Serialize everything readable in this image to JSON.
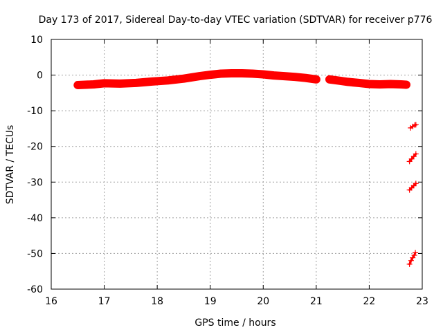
{
  "chart_data": {
    "type": "scatter",
    "title": "Day 173 of 2017, Sidereal Day-to-day VTEC variation (SDTVAR) for receiver p776",
    "xlabel": "GPS time / hours",
    "ylabel": "SDTVAR / TECUs",
    "xlim": [
      16,
      23
    ],
    "ylim": [
      -60,
      10
    ],
    "xticks": [
      16,
      17,
      18,
      19,
      20,
      21,
      22,
      23
    ],
    "yticks": [
      10,
      0,
      -10,
      -20,
      -30,
      -40,
      -50,
      -60
    ],
    "grid": true,
    "marker": "+",
    "color": "#ff0000",
    "series": [
      {
        "values_x": [
          16.5,
          16.8,
          17.0,
          17.3,
          17.6,
          17.9,
          18.2,
          18.5,
          18.8,
          19.0,
          19.2,
          19.4,
          19.6,
          19.8,
          20.0,
          20.2,
          20.4,
          20.6,
          20.8,
          21.0
        ],
        "values_y": [
          -2.8,
          -2.6,
          -2.3,
          -2.4,
          -2.2,
          -1.8,
          -1.5,
          -1.0,
          -0.3,
          0.1,
          0.4,
          0.5,
          0.5,
          0.4,
          0.2,
          -0.1,
          -0.3,
          -0.5,
          -0.8,
          -1.2
        ]
      },
      {
        "values_x": [
          21.25,
          21.4,
          21.6,
          21.8,
          22.0,
          22.2,
          22.4,
          22.6,
          22.7
        ],
        "values_y": [
          -1.2,
          -1.5,
          -1.9,
          -2.2,
          -2.5,
          -2.6,
          -2.5,
          -2.6,
          -2.7
        ]
      },
      {
        "values_x": [
          22.78,
          22.82,
          22.86,
          22.88
        ],
        "values_y": [
          -14.8,
          -14.4,
          -14.0,
          -13.9
        ]
      },
      {
        "values_x": [
          22.76,
          22.8,
          22.84,
          22.88
        ],
        "values_y": [
          -24.2,
          -23.5,
          -22.8,
          -22.1
        ]
      },
      {
        "values_x": [
          22.76,
          22.8,
          22.84,
          22.88
        ],
        "values_y": [
          -32.2,
          -31.6,
          -31.0,
          -30.4
        ]
      },
      {
        "values_x": [
          22.76,
          22.79,
          22.82,
          22.85,
          22.87
        ],
        "values_y": [
          -53.0,
          -52.0,
          -51.2,
          -50.5,
          -49.8
        ]
      }
    ]
  }
}
